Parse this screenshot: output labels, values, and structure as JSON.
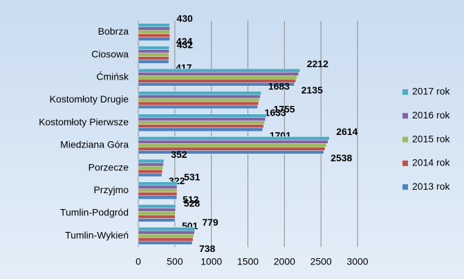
{
  "chart_data": {
    "type": "hbar",
    "categories": [
      "Bobrza",
      "Ciosowa",
      "Ćmińsk",
      "Kostomłoty Drugie",
      "Kostomłoty Pierwsze",
      "Miedziana Góra",
      "Porzecze",
      "Przyjmo",
      "Tumlin-Podgród",
      "Tumlin-Wykień"
    ],
    "series": [
      {
        "name": "2013 rok",
        "color": "#4f81bd",
        "show_labels": true,
        "values": [
          432,
          417,
          2135,
          1633,
          1701,
          2538,
          322,
          528,
          501,
          738
        ]
      },
      {
        "name": "2014 rok",
        "color": "#c0504d",
        "show_labels": false,
        "values": [
          432,
          418,
          2155,
          1645,
          1715,
          2555,
          330,
          529,
          504,
          748
        ]
      },
      {
        "name": "2015 rok",
        "color": "#9bbb59",
        "show_labels": false,
        "values": [
          431,
          420,
          2175,
          1658,
          1728,
          2575,
          337,
          530,
          507,
          758
        ]
      },
      {
        "name": "2016 rok",
        "color": "#8064a2",
        "show_labels": false,
        "values": [
          431,
          422,
          2195,
          1670,
          1740,
          2595,
          345,
          530,
          509,
          770
        ]
      },
      {
        "name": "2017 rok",
        "color": "#4bacc6",
        "show_labels": true,
        "values": [
          430,
          424,
          2212,
          1683,
          1755,
          2614,
          352,
          531,
          512,
          779
        ]
      }
    ],
    "xlim": [
      0,
      3000
    ],
    "xticks": [
      0,
      500,
      1000,
      1500,
      2000,
      2500,
      3000
    ],
    "grid": true,
    "legend": "right"
  }
}
